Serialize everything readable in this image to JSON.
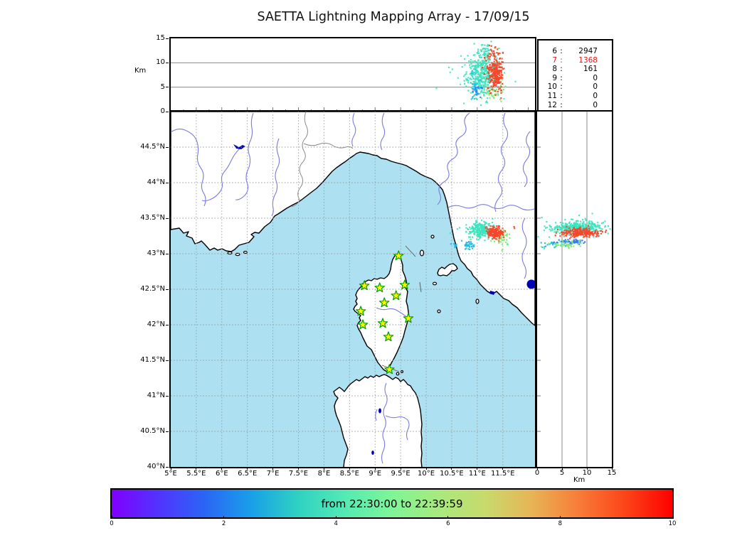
{
  "title": "SAETTA Lightning Mapping Array - 17/09/15",
  "stats_panel": {
    "rows": [
      {
        "label": "6",
        "sep": ":",
        "value": "2947",
        "color": "#000000"
      },
      {
        "label": "7",
        "sep": ":",
        "value": "1368",
        "color": "#e81717"
      },
      {
        "label": "8",
        "sep": ":",
        "value": "161",
        "color": "#000000"
      },
      {
        "label": "9",
        "sep": ":",
        "value": "0",
        "color": "#000000"
      },
      {
        "label": "10",
        "sep": ":",
        "value": "0",
        "color": "#000000"
      },
      {
        "label": "11",
        "sep": ":",
        "value": "0",
        "color": "#000000"
      },
      {
        "label": "12",
        "sep": ":",
        "value": "0",
        "color": "#000000"
      }
    ]
  },
  "axes": {
    "alt_axis_label": "Km",
    "alt_ticks": [
      0,
      5,
      10,
      15
    ],
    "lon_ticks": [
      {
        "v": 5,
        "label": "5°E"
      },
      {
        "v": 5.5,
        "label": "5.5°E"
      },
      {
        "v": 6,
        "label": "6°E"
      },
      {
        "v": 6.5,
        "label": "6.5°E"
      },
      {
        "v": 7,
        "label": "7°E"
      },
      {
        "v": 7.5,
        "label": "7.5°E"
      },
      {
        "v": 8,
        "label": "8°E"
      },
      {
        "v": 8.5,
        "label": "8.5°E"
      },
      {
        "v": 9,
        "label": "9°E"
      },
      {
        "v": 9.5,
        "label": "9.5°E"
      },
      {
        "v": 10,
        "label": "10°E"
      },
      {
        "v": 10.5,
        "label": "10.5°E"
      },
      {
        "v": 11,
        "label": "11°E"
      },
      {
        "v": 11.5,
        "label": "11.5°E"
      }
    ],
    "lat_ticks": [
      {
        "v": 44.5,
        "label": "44.5°N"
      },
      {
        "v": 44,
        "label": "44°N"
      },
      {
        "v": 43.5,
        "label": "43.5°N"
      },
      {
        "v": 43,
        "label": "43°N"
      },
      {
        "v": 42.5,
        "label": "42.5°N"
      },
      {
        "v": 42,
        "label": "42°N"
      },
      {
        "v": 41.5,
        "label": "41.5°N"
      },
      {
        "v": 41,
        "label": "41°N"
      },
      {
        "v": 40.5,
        "label": "40.5°N"
      },
      {
        "v": 40,
        "label": "40°N"
      }
    ],
    "right_alt_ticks": [
      0,
      5,
      10,
      15
    ],
    "right_alt_axis_label": "Km"
  },
  "map_style": {
    "sea": "#ade0f1",
    "land": "#ffffff",
    "coast": "#000000",
    "river": "#7b7be0",
    "lake": "#0000b4",
    "grid": "#999999",
    "border_line": "#8a8a8a",
    "station_fill": "#f5f500",
    "station_stroke": "#00a000"
  },
  "colorbar": {
    "label": "from 22:30:00 to 22:39:59",
    "ticks": [
      "0",
      "2",
      "4",
      "6",
      "8",
      "10"
    ],
    "gradient": [
      "#8000ff",
      "#5233ff",
      "#2a66f5",
      "#19a0e8",
      "#2fd2c2",
      "#55eab4",
      "#7ff598",
      "#a8e97e",
      "#c8da6c",
      "#e8b455",
      "#f87c38",
      "#fc4418",
      "#fe0000"
    ]
  },
  "stations": [
    {
      "lon": 9.46,
      "lat": 42.97
    },
    {
      "lon": 8.79,
      "lat": 42.55
    },
    {
      "lon": 9.09,
      "lat": 42.52
    },
    {
      "lon": 9.58,
      "lat": 42.56
    },
    {
      "lon": 9.41,
      "lat": 42.41
    },
    {
      "lon": 9.18,
      "lat": 42.31
    },
    {
      "lon": 8.72,
      "lat": 42.19
    },
    {
      "lon": 9.65,
      "lat": 42.09
    },
    {
      "lon": 8.76,
      "lat": 42.0
    },
    {
      "lon": 9.15,
      "lat": 42.02
    },
    {
      "lon": 9.26,
      "lat": 41.83
    },
    {
      "lon": 9.28,
      "lat": 41.37
    }
  ],
  "chart_data": [
    {
      "id": "alt_vs_lon",
      "type": "scatter",
      "ylabel": "Km",
      "xlim": [
        5,
        12.13
      ],
      "ylim": [
        0,
        15
      ],
      "grid_y": [
        5,
        10
      ],
      "clusters": [
        {
          "color": "#45e8c2",
          "cx": 11.05,
          "cy": 8.0,
          "sx": 0.3,
          "sy": 3.2,
          "n": 60
        },
        {
          "color": "#3de3bd",
          "cx": 11.08,
          "cy": 7.3,
          "sx": 0.12,
          "sy": 2.2,
          "n": 300
        },
        {
          "color": "#3de3bd",
          "cx": 11.12,
          "cy": 12.3,
          "sx": 0.09,
          "sy": 0.9,
          "n": 45
        },
        {
          "color": "#29bfe8",
          "cx": 10.97,
          "cy": 5.2,
          "sx": 0.05,
          "sy": 1.5,
          "n": 40
        },
        {
          "color": "#2f7bf2",
          "cx": 11.0,
          "cy": 4.0,
          "sx": 0.04,
          "sy": 0.7,
          "n": 15
        },
        {
          "color": "#86e878",
          "cx": 11.3,
          "cy": 3.6,
          "sx": 0.1,
          "sy": 0.9,
          "n": 28
        },
        {
          "color": "#86e878",
          "cx": 11.45,
          "cy": 5.5,
          "sx": 0.05,
          "sy": 0.8,
          "n": 12
        },
        {
          "color": "#f4472a",
          "cx": 11.35,
          "cy": 8.2,
          "sx": 0.075,
          "sy": 1.9,
          "n": 260
        },
        {
          "color": "#f4472a",
          "cx": 11.3,
          "cy": 12.0,
          "sx": 0.05,
          "sy": 0.7,
          "n": 20
        }
      ]
    },
    {
      "id": "map_lightning",
      "type": "scatter",
      "xlim": [
        5,
        12.13
      ],
      "ylim": [
        40,
        45
      ],
      "clusters": [
        {
          "color": "#45e8c2",
          "cx": 11.1,
          "cy": 43.32,
          "sx": 0.22,
          "sy": 0.1,
          "n": 25
        },
        {
          "color": "#3de3bd",
          "cx": 11.06,
          "cy": 43.34,
          "sx": 0.11,
          "sy": 0.055,
          "n": 210
        },
        {
          "color": "#22b8dc",
          "cx": 10.83,
          "cy": 43.13,
          "sx": 0.055,
          "sy": 0.03,
          "n": 32
        },
        {
          "color": "#22b8dc",
          "cx": 10.56,
          "cy": 43.12,
          "sx": 0.03,
          "sy": 0.018,
          "n": 8
        },
        {
          "color": "#86e878",
          "cx": 11.48,
          "cy": 43.22,
          "sx": 0.07,
          "sy": 0.055,
          "n": 45
        },
        {
          "color": "#f4472a",
          "cx": 11.35,
          "cy": 43.3,
          "sx": 0.085,
          "sy": 0.04,
          "n": 180
        },
        {
          "color": "#f4472a",
          "cx": 11.72,
          "cy": 43.37,
          "sx": 0.01,
          "sy": 0.01,
          "n": 2
        }
      ]
    },
    {
      "id": "alt_vs_lat",
      "type": "scatter",
      "xlabel": "Km",
      "xlim": [
        0,
        15
      ],
      "ylim": [
        40,
        45
      ],
      "grid_x": [
        5,
        10
      ],
      "clusters": [
        {
          "color": "#45e8c2",
          "cx": 8.0,
          "cy": 43.33,
          "sx": 4.0,
          "sy": 0.09,
          "n": 60
        },
        {
          "color": "#3de3bd",
          "cx": 8.2,
          "cy": 43.37,
          "sx": 2.6,
          "sy": 0.045,
          "n": 300
        },
        {
          "color": "#22b8dc",
          "cx": 4.0,
          "cy": 43.14,
          "sx": 1.3,
          "sy": 0.025,
          "n": 25
        },
        {
          "color": "#2f7bf2",
          "cx": 6.8,
          "cy": 43.17,
          "sx": 1.7,
          "sy": 0.013,
          "n": 55
        },
        {
          "color": "#86e878",
          "cx": 6.0,
          "cy": 43.13,
          "sx": 2.0,
          "sy": 0.03,
          "n": 40
        },
        {
          "color": "#f4472a",
          "cx": 8.8,
          "cy": 43.3,
          "sx": 2.0,
          "sy": 0.032,
          "n": 230
        }
      ]
    }
  ]
}
